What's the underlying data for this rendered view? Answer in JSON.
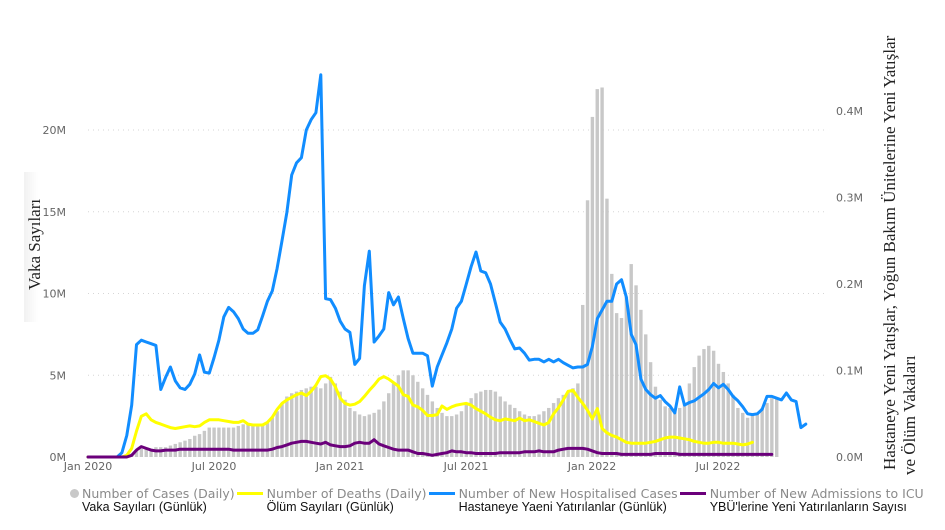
{
  "chart_data": {
    "type": "bar+line",
    "title": "",
    "xlabel": "",
    "ylabel_left": "Vaka Sayıları",
    "ylabel_right_line1": "Hastaneye Yeni Yatışlar, Yoğun Bakım Ünitelerine Yeni Yatışlar",
    "ylabel_right_line2": "ve Ölüm Vakaları",
    "x_ticks": [
      "Jan 2020",
      "Jul 2020",
      "Jan 2021",
      "Jul 2021",
      "Jan 2022",
      "Jul 2022"
    ],
    "y_left_ticks": [
      "0M",
      "5M",
      "10M",
      "15M",
      "20M"
    ],
    "y_left_range": [
      0,
      20
    ],
    "y_left_unit": "M",
    "y_right_ticks": [
      "0.0M",
      "0.1M",
      "0.2M",
      "0.3M",
      "0.4M"
    ],
    "y_right_range": [
      0,
      0.4
    ],
    "y_right_unit": "M",
    "grid": true,
    "legend_position": "bottom",
    "x_start": "2020-01-05",
    "x_interval": "weekly",
    "series": [
      {
        "name": "Number of Cases (Daily)",
        "label_tr": "Vaka Sayıları (Günlük)",
        "type": "bar",
        "axis": "left",
        "color": "#c8c8c8",
        "values": [
          0,
          0,
          0,
          0,
          0,
          0,
          0,
          0,
          0.1,
          0.2,
          0.4,
          0.5,
          0.5,
          0.5,
          0.6,
          0.6,
          0.6,
          0.7,
          0.8,
          0.9,
          1.0,
          1.1,
          1.3,
          1.4,
          1.6,
          1.8,
          1.8,
          1.8,
          1.8,
          1.8,
          1.8,
          1.9,
          2.0,
          2.0,
          2.0,
          2.0,
          2.0,
          2.1,
          2.4,
          2.8,
          3.3,
          3.7,
          3.9,
          4.0,
          4.1,
          4.2,
          4.3,
          4.3,
          4.2,
          4.5,
          4.9,
          4.5,
          4.0,
          3.5,
          3.0,
          2.8,
          2.6,
          2.5,
          2.6,
          2.7,
          2.9,
          3.4,
          3.9,
          4.5,
          5.0,
          5.3,
          5.3,
          5.0,
          4.6,
          4.2,
          3.8,
          3.4,
          3.0,
          2.7,
          2.5,
          2.5,
          2.6,
          2.8,
          3.2,
          3.6,
          3.9,
          4.0,
          4.1,
          4.1,
          4.0,
          3.7,
          3.4,
          3.2,
          3.0,
          2.8,
          2.6,
          2.5,
          2.5,
          2.6,
          2.8,
          3.0,
          3.3,
          3.6,
          3.8,
          4.0,
          4.2,
          4.5,
          9.3,
          15.7,
          20.8,
          22.5,
          22.6,
          15.8,
          11.2,
          8.8,
          8.5,
          9.8,
          11.8,
          10.5,
          9.0,
          7.5,
          5.8,
          4.3,
          3.5,
          3.1,
          3.0,
          2.9,
          3.0,
          3.3,
          4.5,
          5.5,
          6.2,
          6.6,
          6.8,
          6.5,
          5.7,
          5.2,
          4.5,
          3.8,
          3.0,
          2.7,
          2.4,
          2.6,
          2.7,
          3.0,
          3.3,
          3.6,
          3.6
        ]
      },
      {
        "name": "Number of Deaths (Daily)",
        "label_tr": "Ölüm Sayıları (Günlük)",
        "type": "line",
        "axis": "right",
        "color": "#ffff00",
        "values": [
          0,
          0,
          0,
          0,
          0,
          0,
          0,
          0,
          0.002,
          0.01,
          0.03,
          0.047,
          0.05,
          0.043,
          0.04,
          0.038,
          0.036,
          0.034,
          0.033,
          0.034,
          0.035,
          0.036,
          0.035,
          0.036,
          0.04,
          0.043,
          0.043,
          0.043,
          0.042,
          0.041,
          0.04,
          0.04,
          0.042,
          0.038,
          0.037,
          0.037,
          0.037,
          0.04,
          0.046,
          0.055,
          0.062,
          0.066,
          0.069,
          0.072,
          0.074,
          0.071,
          0.076,
          0.083,
          0.093,
          0.094,
          0.09,
          0.081,
          0.068,
          0.062,
          0.06,
          0.061,
          0.064,
          0.07,
          0.077,
          0.083,
          0.09,
          0.093,
          0.09,
          0.086,
          0.082,
          0.072,
          0.07,
          0.06,
          0.058,
          0.054,
          0.048,
          0.048,
          0.049,
          0.059,
          0.055,
          0.058,
          0.06,
          0.061,
          0.062,
          0.06,
          0.056,
          0.053,
          0.05,
          0.046,
          0.043,
          0.042,
          0.044,
          0.043,
          0.042,
          0.045,
          0.042,
          0.043,
          0.041,
          0.039,
          0.037,
          0.04,
          0.05,
          0.057,
          0.066,
          0.076,
          0.077,
          0.069,
          0.062,
          0.054,
          0.044,
          0.056,
          0.033,
          0.028,
          0.025,
          0.023,
          0.02,
          0.017,
          0.016,
          0.016,
          0.016,
          0.016,
          0.017,
          0.018,
          0.02,
          0.022,
          0.023,
          0.023,
          0.022,
          0.021,
          0.02,
          0.018,
          0.017,
          0.016,
          0.016,
          0.017,
          0.017,
          0.016,
          0.016,
          0.016,
          0.015,
          0.014,
          0.015,
          0.017
        ]
      },
      {
        "name": "Number of New Hospitalised Cases",
        "label_tr": "Hastaneye Yaeni Yatırılanlar (Günlük)",
        "type": "line",
        "axis": "right",
        "color": "#118dff",
        "values": [
          0,
          0,
          0,
          0,
          0,
          0,
          0,
          0.005,
          0.025,
          0.06,
          0.13,
          0.135,
          0.133,
          0.131,
          0.129,
          0.078,
          0.092,
          0.104,
          0.088,
          0.08,
          0.078,
          0.084,
          0.096,
          0.118,
          0.098,
          0.097,
          0.115,
          0.135,
          0.162,
          0.173,
          0.168,
          0.16,
          0.148,
          0.143,
          0.143,
          0.147,
          0.163,
          0.18,
          0.192,
          0.218,
          0.25,
          0.283,
          0.326,
          0.34,
          0.346,
          0.378,
          0.39,
          0.398,
          0.442,
          0.183,
          0.182,
          0.172,
          0.157,
          0.148,
          0.144,
          0.107,
          0.114,
          0.198,
          0.238,
          0.133,
          0.14,
          0.148,
          0.19,
          0.176,
          0.185,
          0.16,
          0.137,
          0.12,
          0.12,
          0.12,
          0.117,
          0.082,
          0.104,
          0.118,
          0.132,
          0.148,
          0.172,
          0.18,
          0.2,
          0.22,
          0.237,
          0.215,
          0.213,
          0.2,
          0.178,
          0.156,
          0.148,
          0.136,
          0.125,
          0.126,
          0.12,
          0.112,
          0.113,
          0.113,
          0.11,
          0.113,
          0.11,
          0.113,
          0.109,
          0.106,
          0.103,
          0.104,
          0.104,
          0.107,
          0.128,
          0.16,
          0.17,
          0.18,
          0.18,
          0.2,
          0.205,
          0.185,
          0.142,
          0.13,
          0.09,
          0.078,
          0.072,
          0.068,
          0.071,
          0.064,
          0.059,
          0.051,
          0.081,
          0.06,
          0.063,
          0.065,
          0.069,
          0.073,
          0.078,
          0.085,
          0.08,
          0.084,
          0.078,
          0.07,
          0.065,
          0.058,
          0.05,
          0.049,
          0.05,
          0.055,
          0.07,
          0.07,
          0.068,
          0.066,
          0.074,
          0.066,
          0.064,
          0.034,
          0.038
        ]
      },
      {
        "name": "Number of New Admissions to ICU",
        "label_tr": "YBÜ'lerine Yeni Yatırılanların Sayısı",
        "type": "line",
        "axis": "right",
        "color": "#6b007b",
        "values": [
          0,
          0,
          0,
          0,
          0,
          0,
          0,
          0,
          0,
          0.002,
          0.008,
          0.012,
          0.01,
          0.008,
          0.007,
          0.007,
          0.008,
          0.008,
          0.008,
          0.009,
          0.009,
          0.009,
          0.009,
          0.009,
          0.009,
          0.009,
          0.009,
          0.009,
          0.009,
          0.009,
          0.008,
          0.008,
          0.008,
          0.008,
          0.008,
          0.008,
          0.008,
          0.008,
          0.009,
          0.011,
          0.012,
          0.014,
          0.016,
          0.017,
          0.018,
          0.018,
          0.017,
          0.016,
          0.015,
          0.017,
          0.014,
          0.013,
          0.012,
          0.012,
          0.013,
          0.016,
          0.017,
          0.016,
          0.016,
          0.02,
          0.015,
          0.013,
          0.011,
          0.009,
          0.008,
          0.008,
          0.008,
          0.006,
          0.004,
          0.004,
          0.003,
          0.002,
          0.003,
          0.004,
          0.005,
          0.007,
          0.006,
          0.006,
          0.005,
          0.005,
          0.004,
          0.004,
          0.004,
          0.004,
          0.004,
          0.005,
          0.005,
          0.005,
          0.005,
          0.005,
          0.006,
          0.006,
          0.006,
          0.007,
          0.006,
          0.006,
          0.006,
          0.008,
          0.009,
          0.01,
          0.01,
          0.01,
          0.01,
          0.009,
          0.007,
          0.005,
          0.004,
          0.004,
          0.004,
          0.004,
          0.003,
          0.003,
          0.003,
          0.003,
          0.003,
          0.003,
          0.003,
          0.004,
          0.004,
          0.004,
          0.004,
          0.004,
          0.003,
          0.003,
          0.003,
          0.003,
          0.003,
          0.003,
          0.003,
          0.003,
          0.003,
          0.003,
          0.003,
          0.003,
          0.003,
          0.003,
          0.003,
          0.003,
          0.003,
          0.003,
          0.003,
          0.003
        ]
      }
    ]
  }
}
